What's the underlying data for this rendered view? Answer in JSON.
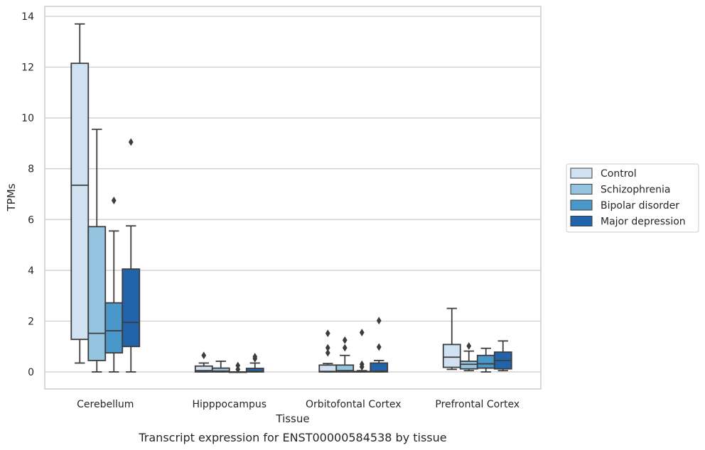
{
  "chart_data": {
    "type": "box",
    "caption": "Transcript expression for ENST00000584538 by tissue",
    "xlabel": "Tissue",
    "ylabel": "TPMs",
    "ylim": [
      -0.65,
      14.4
    ],
    "yticks": [
      0,
      2,
      4,
      6,
      8,
      10,
      12,
      14
    ],
    "grid": "horizontal",
    "legend_position": "right",
    "categories": [
      "Cerebellum",
      "Hipppocampus",
      "Orbitofontal Cortex",
      "Prefrontal Cortex"
    ],
    "series": [
      {
        "name": "Control",
        "color": "#d0e1f2",
        "boxes": [
          {
            "whislo": 0.35,
            "q1": 1.28,
            "med": 7.35,
            "q3": 12.15,
            "whishi": 13.7,
            "fliers": []
          },
          {
            "whislo": 0.0,
            "q1": 0.0,
            "med": 0.05,
            "q3": 0.23,
            "whishi": 0.35,
            "fliers": [
              0.65
            ]
          },
          {
            "whislo": 0.0,
            "q1": 0.0,
            "med": 0.02,
            "q3": 0.27,
            "whishi": 0.33,
            "fliers": [
              0.75,
              0.95,
              1.52
            ]
          },
          {
            "whislo": 0.1,
            "q1": 0.18,
            "med": 0.58,
            "q3": 1.08,
            "whishi": 2.5,
            "fliers": []
          }
        ]
      },
      {
        "name": "Schizophrenia",
        "color": "#94c4df",
        "boxes": [
          {
            "whislo": 0.0,
            "q1": 0.45,
            "med": 1.52,
            "q3": 5.72,
            "whishi": 9.55,
            "fliers": []
          },
          {
            "whislo": 0.0,
            "q1": 0.0,
            "med": 0.03,
            "q3": 0.15,
            "whishi": 0.42,
            "fliers": []
          },
          {
            "whislo": 0.0,
            "q1": 0.0,
            "med": 0.05,
            "q3": 0.27,
            "whishi": 0.65,
            "fliers": [
              0.95,
              1.25
            ]
          },
          {
            "whislo": 0.05,
            "q1": 0.12,
            "med": 0.3,
            "q3": 0.42,
            "whishi": 0.82,
            "fliers": [
              1.02
            ]
          }
        ]
      },
      {
        "name": "Bipolar disorder",
        "color": "#4a98c9",
        "boxes": [
          {
            "whislo": 0.0,
            "q1": 0.75,
            "med": 1.62,
            "q3": 2.72,
            "whishi": 5.55,
            "fliers": [
              6.75
            ]
          },
          {
            "whislo": 0.0,
            "q1": 0.0,
            "med": 0.0,
            "q3": 0.0,
            "whishi": 0.0,
            "fliers": [
              0.1,
              0.25
            ]
          },
          {
            "whislo": 0.0,
            "q1": 0.0,
            "med": 0.0,
            "q3": 0.02,
            "whishi": 0.05,
            "fliers": [
              0.2,
              0.3,
              1.55
            ]
          },
          {
            "whislo": 0.0,
            "q1": 0.15,
            "med": 0.32,
            "q3": 0.65,
            "whishi": 0.93,
            "fliers": []
          }
        ]
      },
      {
        "name": "Major depression",
        "color": "#2164ab",
        "boxes": [
          {
            "whislo": 0.0,
            "q1": 1.0,
            "med": 1.95,
            "q3": 4.05,
            "whishi": 5.75,
            "fliers": [
              9.05
            ]
          },
          {
            "whislo": 0.0,
            "q1": 0.0,
            "med": 0.02,
            "q3": 0.14,
            "whishi": 0.35,
            "fliers": [
              0.52,
              0.6
            ]
          },
          {
            "whislo": 0.0,
            "q1": 0.0,
            "med": 0.03,
            "q3": 0.35,
            "whishi": 0.45,
            "fliers": [
              0.98,
              2.02
            ]
          },
          {
            "whislo": 0.05,
            "q1": 0.12,
            "med": 0.45,
            "q3": 0.78,
            "whishi": 1.22,
            "fliers": []
          }
        ]
      }
    ]
  }
}
